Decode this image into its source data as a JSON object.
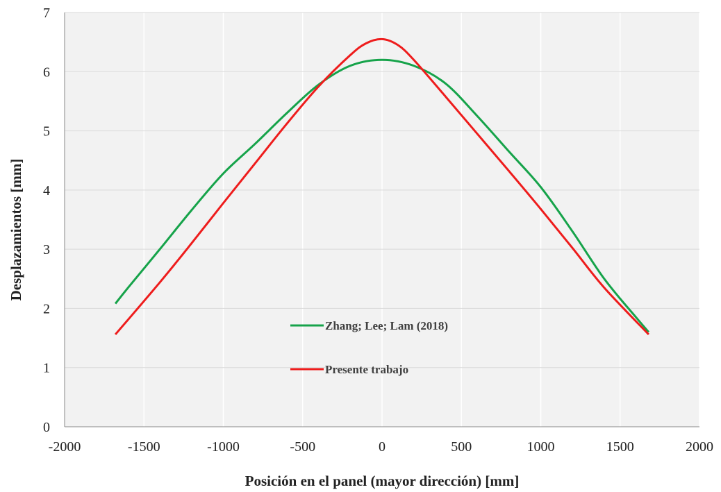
{
  "chart_data": {
    "type": "line",
    "title": "",
    "xlabel": "Posición en el panel (mayor dirección) [mm]",
    "ylabel": "Desplazamientos [mm]",
    "xlim": [
      -2000,
      2000
    ],
    "ylim": [
      0,
      7
    ],
    "xticks": [
      -2000,
      -1500,
      -1000,
      -500,
      0,
      500,
      1000,
      1500,
      2000
    ],
    "yticks": [
      0,
      1,
      2,
      3,
      4,
      5,
      6,
      7
    ],
    "xtick_labels": [
      "-2000",
      "-1500",
      "-1000",
      "-500",
      "0",
      "500",
      "1000",
      "1500",
      "2000"
    ],
    "ytick_labels": [
      "0",
      "1",
      "2",
      "3",
      "4",
      "5",
      "6",
      "7"
    ],
    "grid": "vertical and horizontal",
    "plot_background": "#f2f2f2",
    "legend_placement": "center-left inside plot",
    "series": [
      {
        "name": "Zhang; Lee; Lam (2018)",
        "color": "#16a34a",
        "x": [
          -1680,
          -1600,
          -1400,
          -1200,
          -1000,
          -800,
          -600,
          -400,
          -200,
          0,
          200,
          400,
          600,
          800,
          1000,
          1200,
          1400,
          1600,
          1680
        ],
        "y": [
          2.08,
          2.35,
          3.0,
          3.66,
          4.28,
          4.78,
          5.3,
          5.78,
          6.1,
          6.2,
          6.1,
          5.8,
          5.25,
          4.65,
          4.05,
          3.3,
          2.5,
          1.85,
          1.6
        ]
      },
      {
        "name": "Presente trabajo",
        "color": "#ee1c1c",
        "x": [
          -1680,
          -1400,
          -1200,
          -1000,
          -800,
          -600,
          -400,
          -200,
          -100,
          0,
          100,
          200,
          400,
          600,
          800,
          1000,
          1200,
          1400,
          1680
        ],
        "y": [
          1.56,
          2.44,
          3.1,
          3.78,
          4.45,
          5.12,
          5.75,
          6.28,
          6.48,
          6.55,
          6.45,
          6.2,
          5.58,
          4.95,
          4.32,
          3.68,
          3.02,
          2.35,
          1.56
        ]
      }
    ]
  }
}
